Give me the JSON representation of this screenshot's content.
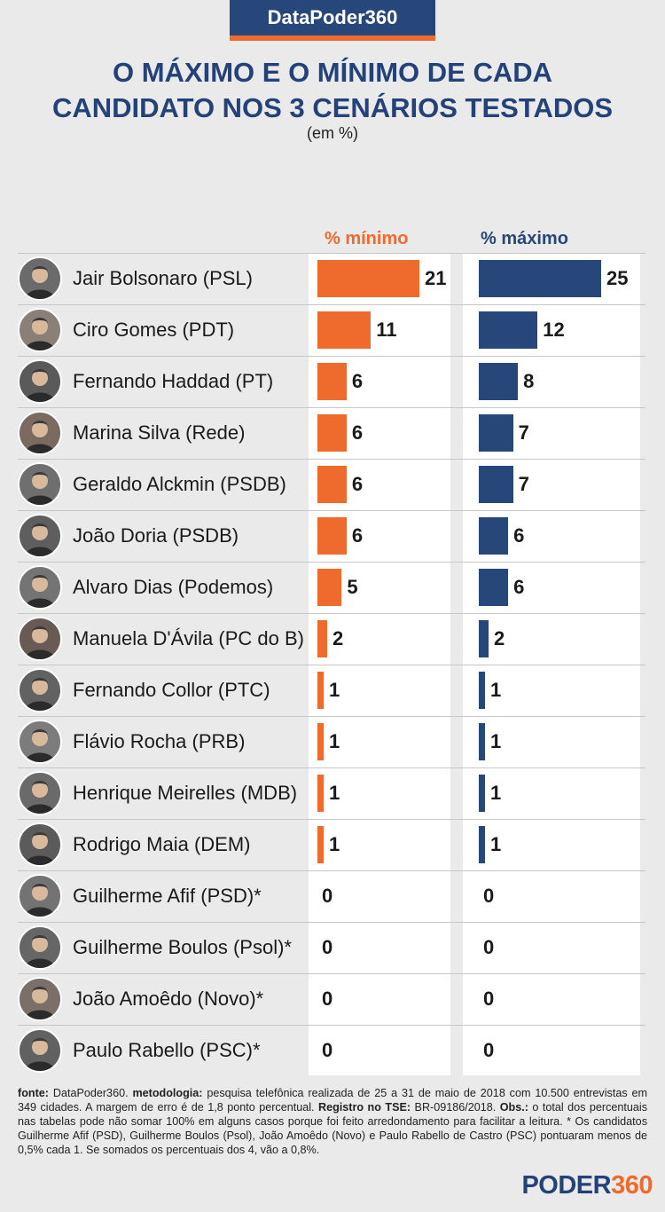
{
  "header": {
    "brand": "DataPoder360",
    "title_line1": "O MÁXIMO E O MÍNIMO DE CADA",
    "title_line2": "CANDIDATO NOS 3 CENÁRIOS TESTADOS",
    "subtitle": "(em %)"
  },
  "colors": {
    "min": "#ef6a2d",
    "max": "#27477a",
    "title": "#24427a"
  },
  "chart_data": {
    "type": "bar",
    "title": "O MÁXIMO E O MÍNIMO DE CADA CANDIDATO NOS 3 CENÁRIOS TESTADOS",
    "ylabel": "(em %)",
    "categories": [
      "Jair Bolsonaro (PSL)",
      "Ciro Gomes (PDT)",
      "Fernando Haddad (PT)",
      "Marina Silva (Rede)",
      "Geraldo Alckmin (PSDB)",
      "João Doria (PSDB)",
      "Alvaro Dias (Podemos)",
      "Manuela D'Ávila (PC do B)",
      "Fernando Collor (PTC)",
      "Flávio Rocha (PRB)",
      "Henrique Meirelles (MDB)",
      "Rodrigo Maia (DEM)",
      "Guilherme Afif (PSD)*",
      "Guilherme Boulos (Psol)*",
      "João Amoêdo (Novo)*",
      "Paulo Rabello (PSC)*"
    ],
    "series": [
      {
        "name": "% mínimo",
        "color": "#ef6a2d",
        "values": [
          21,
          11,
          6,
          6,
          6,
          6,
          5,
          2,
          1,
          1,
          1,
          1,
          0,
          0,
          0,
          0
        ]
      },
      {
        "name": "% máximo",
        "color": "#27477a",
        "values": [
          25,
          12,
          8,
          7,
          7,
          6,
          6,
          2,
          1,
          1,
          1,
          1,
          0,
          0,
          0,
          0
        ]
      }
    ],
    "ylim": [
      0,
      25
    ],
    "grid": false,
    "legend": "top"
  },
  "footnote": {
    "fonte_label": "fonte:",
    "fonte_text": " DataPoder360. ",
    "metodologia_label": "metodologia:",
    "metodologia_text": " pesquisa telefônica realizada de 25 a 31 de maio de 2018 com 10.500 entrevistas em 349 cidades. A margem de erro é de 1,8 ponto percentual. ",
    "registro_label": "Registro no TSE:",
    "registro_text": " BR-09186/2018. ",
    "obs_label": "Obs.:",
    "obs_text": " o total dos percentuais nas tabelas pode não somar 100% em alguns casos porque foi feito arredondamento para facilitar a leitura. * Os candidatos Guilherme Afif (PSD), Guilherme Boulos (Psol), João Amoêdo (Novo) e Paulo Rabello de Castro (PSC) pontuaram menos de 0,5% cada 1. Se somados os percentuais dos 4, vão a 0,8%."
  },
  "logo": {
    "part1": "PODER",
    "part2": "360"
  }
}
